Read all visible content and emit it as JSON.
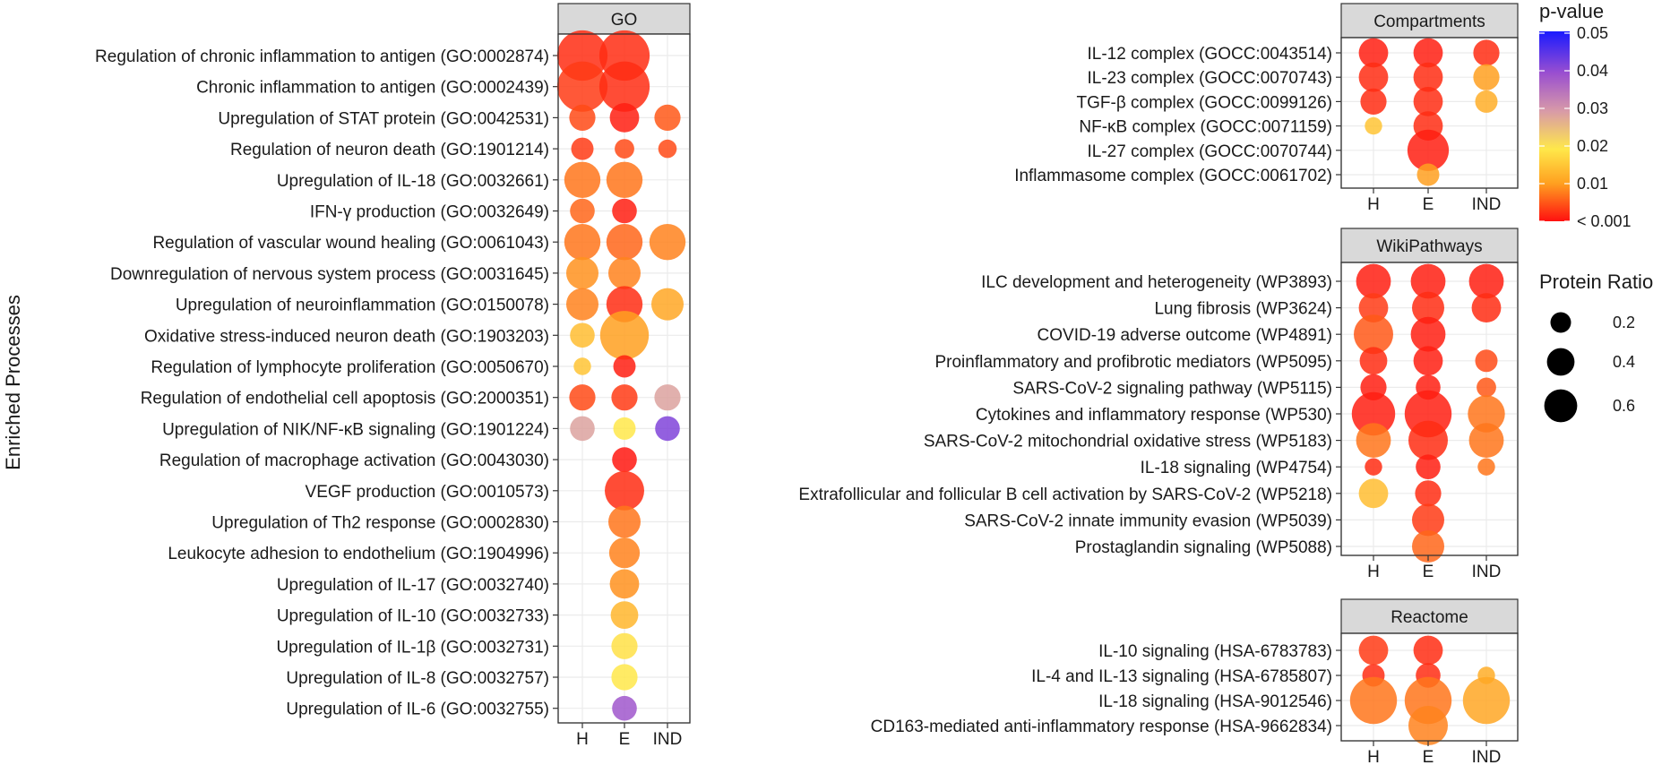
{
  "chart_data": {
    "type": "dot",
    "y_axis_title": "Enriched Processes",
    "x_categories": [
      "H",
      "E",
      "IND"
    ],
    "color_legend": {
      "title": "p-value",
      "labels": [
        "0.05",
        "0.04",
        "0.03",
        "0.02",
        "0.01",
        "< 0.001"
      ],
      "scale": [
        0.05,
        0.001
      ]
    },
    "size_legend": {
      "title": "Protein Ratio",
      "labels": [
        "0.2",
        "0.4",
        "0.6"
      ],
      "values": [
        0.2,
        0.4,
        0.6
      ]
    },
    "panels": [
      {
        "name": "GO",
        "terms": [
          {
            "label": "Regulation of chronic inflammation to antigen (GO:0002874)",
            "points": [
              {
                "x": "H",
                "ratio": 0.7,
                "p": 0.002
              },
              {
                "x": "E",
                "ratio": 0.7,
                "p": 0.002
              }
            ]
          },
          {
            "label": "Chronic inflammation to antigen (GO:0002439)",
            "points": [
              {
                "x": "H",
                "ratio": 0.7,
                "p": 0.003
              },
              {
                "x": "E",
                "ratio": 0.7,
                "p": 0.002
              }
            ]
          },
          {
            "label": "Upregulation of STAT protein (GO:0042531)",
            "points": [
              {
                "x": "H",
                "ratio": 0.15,
                "p": 0.004
              },
              {
                "x": "E",
                "ratio": 0.2,
                "p": 0.001
              },
              {
                "x": "IND",
                "ratio": 0.15,
                "p": 0.005
              }
            ]
          },
          {
            "label": "Regulation of neuron death (GO:1901214)",
            "points": [
              {
                "x": "H",
                "ratio": 0.1,
                "p": 0.003
              },
              {
                "x": "E",
                "ratio": 0.07,
                "p": 0.004
              },
              {
                "x": "IND",
                "ratio": 0.06,
                "p": 0.004
              }
            ]
          },
          {
            "label": "Upregulation of IL-18 (GO:0032661)",
            "points": [
              {
                "x": "H",
                "ratio": 0.33,
                "p": 0.007
              },
              {
                "x": "E",
                "ratio": 0.33,
                "p": 0.007
              }
            ]
          },
          {
            "label": "IFN-γ production (GO:0032649)",
            "points": [
              {
                "x": "H",
                "ratio": 0.13,
                "p": 0.006
              },
              {
                "x": "E",
                "ratio": 0.13,
                "p": 0.001
              }
            ]
          },
          {
            "label": "Regulation of vascular wound healing (GO:0061043)",
            "points": [
              {
                "x": "H",
                "ratio": 0.33,
                "p": 0.007
              },
              {
                "x": "E",
                "ratio": 0.33,
                "p": 0.006
              },
              {
                "x": "IND",
                "ratio": 0.33,
                "p": 0.008
              }
            ]
          },
          {
            "label": "Downregulation of nervous system process (GO:0031645)",
            "points": [
              {
                "x": "H",
                "ratio": 0.25,
                "p": 0.009
              },
              {
                "x": "E",
                "ratio": 0.25,
                "p": 0.008
              }
            ]
          },
          {
            "label": "Upregulation of neuroinflammation (GO:0150078)",
            "points": [
              {
                "x": "H",
                "ratio": 0.25,
                "p": 0.008
              },
              {
                "x": "E",
                "ratio": 0.33,
                "p": 0.002
              },
              {
                "x": "IND",
                "ratio": 0.25,
                "p": 0.011
              }
            ]
          },
          {
            "label": "Oxidative stress-induced neuron death (GO:1903203)",
            "points": [
              {
                "x": "H",
                "ratio": 0.13,
                "p": 0.014
              },
              {
                "x": "E",
                "ratio": 0.65,
                "p": 0.01
              }
            ]
          },
          {
            "label": "Regulation of lymphocyte proliferation (GO:0050670)",
            "points": [
              {
                "x": "H",
                "ratio": 0.05,
                "p": 0.015
              },
              {
                "x": "E",
                "ratio": 0.1,
                "p": 0.001
              }
            ]
          },
          {
            "label": "Regulation of endothelial cell apoptosis (GO:2000351)",
            "points": [
              {
                "x": "H",
                "ratio": 0.15,
                "p": 0.004
              },
              {
                "x": "E",
                "ratio": 0.15,
                "p": 0.003
              },
              {
                "x": "IND",
                "ratio": 0.15,
                "p": 0.029
              }
            ]
          },
          {
            "label": "Upregulation of NIK/NF-κB signaling (GO:1901224)",
            "points": [
              {
                "x": "H",
                "ratio": 0.13,
                "p": 0.029
              },
              {
                "x": "E",
                "ratio": 0.1,
                "p": 0.02
              },
              {
                "x": "IND",
                "ratio": 0.13,
                "p": 0.042
              }
            ]
          },
          {
            "label": "Regulation of macrophage activation (GO:0043030)",
            "points": [
              {
                "x": "E",
                "ratio": 0.13,
                "p": 0.0005
              }
            ]
          },
          {
            "label": "VEGF production (GO:0010573)",
            "points": [
              {
                "x": "E",
                "ratio": 0.4,
                "p": 0.002
              }
            ]
          },
          {
            "label": "Upregulation of Th2 response (GO:0002830)",
            "points": [
              {
                "x": "E",
                "ratio": 0.25,
                "p": 0.007
              }
            ]
          },
          {
            "label": "Leukocyte adhesion to endothelium (GO:1904996)",
            "points": [
              {
                "x": "E",
                "ratio": 0.22,
                "p": 0.008
              }
            ]
          },
          {
            "label": "Upregulation of IL-17 (GO:0032740)",
            "points": [
              {
                "x": "E",
                "ratio": 0.2,
                "p": 0.009
              }
            ]
          },
          {
            "label": "Upregulation of IL-10 (GO:0032733)",
            "points": [
              {
                "x": "E",
                "ratio": 0.17,
                "p": 0.013
              }
            ]
          },
          {
            "label": "Upregulation of IL-1β (GO:0032731)",
            "points": [
              {
                "x": "E",
                "ratio": 0.15,
                "p": 0.019
              }
            ]
          },
          {
            "label": "Upregulation of IL-8 (GO:0032757)",
            "points": [
              {
                "x": "E",
                "ratio": 0.15,
                "p": 0.02
              }
            ]
          },
          {
            "label": "Upregulation of IL-6 (GO:0032755)",
            "points": [
              {
                "x": "E",
                "ratio": 0.13,
                "p": 0.039
              }
            ]
          }
        ]
      },
      {
        "name": "Compartments",
        "terms": [
          {
            "label": "IL-12 complex (GOCC:0043514)",
            "points": [
              {
                "x": "H",
                "ratio": 0.2,
                "p": 0.001
              },
              {
                "x": "E",
                "ratio": 0.2,
                "p": 0.001
              },
              {
                "x": "IND",
                "ratio": 0.15,
                "p": 0.002
              }
            ]
          },
          {
            "label": "IL-23 complex (GOCC:0070743)",
            "points": [
              {
                "x": "H",
                "ratio": 0.2,
                "p": 0.002
              },
              {
                "x": "E",
                "ratio": 0.2,
                "p": 0.002
              },
              {
                "x": "IND",
                "ratio": 0.15,
                "p": 0.01
              }
            ]
          },
          {
            "label": "TGF-β complex (GOCC:0099126)",
            "points": [
              {
                "x": "H",
                "ratio": 0.15,
                "p": 0.002
              },
              {
                "x": "E",
                "ratio": 0.2,
                "p": 0.002
              },
              {
                "x": "IND",
                "ratio": 0.1,
                "p": 0.012
              }
            ]
          },
          {
            "label": "NF-κB complex (GOCC:0071159)",
            "points": [
              {
                "x": "H",
                "ratio": 0.05,
                "p": 0.015
              },
              {
                "x": "E",
                "ratio": 0.2,
                "p": 0.002
              }
            ]
          },
          {
            "label": "IL-27 complex (GOCC:0070744)",
            "points": [
              {
                "x": "E",
                "ratio": 0.45,
                "p": 0.001
              }
            ]
          },
          {
            "label": "Inflammasome complex (GOCC:0061702)",
            "points": [
              {
                "x": "E",
                "ratio": 0.1,
                "p": 0.01
              }
            ]
          }
        ]
      },
      {
        "name": "WikiPathways",
        "terms": [
          {
            "label": "ILC development and heterogeneity (WP3893)",
            "points": [
              {
                "x": "H",
                "ratio": 0.3,
                "p": 0.001
              },
              {
                "x": "E",
                "ratio": 0.3,
                "p": 0.001
              },
              {
                "x": "IND",
                "ratio": 0.3,
                "p": 0.001
              }
            ]
          },
          {
            "label": "Lung fibrosis (WP3624)",
            "points": [
              {
                "x": "H",
                "ratio": 0.2,
                "p": 0.003
              },
              {
                "x": "E",
                "ratio": 0.25,
                "p": 0.002
              },
              {
                "x": "IND",
                "ratio": 0.2,
                "p": 0.002
              }
            ]
          },
          {
            "label": "COVID-19 adverse outcome (WP4891)",
            "points": [
              {
                "x": "H",
                "ratio": 0.4,
                "p": 0.005
              },
              {
                "x": "E",
                "ratio": 0.3,
                "p": 0.001
              }
            ]
          },
          {
            "label": "Proinflammatory and profibrotic mediators (WP5095)",
            "points": [
              {
                "x": "H",
                "ratio": 0.17,
                "p": 0.002
              },
              {
                "x": "E",
                "ratio": 0.2,
                "p": 0.001
              },
              {
                "x": "IND",
                "ratio": 0.1,
                "p": 0.004
              }
            ]
          },
          {
            "label": "SARS-CoV-2 signaling pathway (WP5115)",
            "points": [
              {
                "x": "H",
                "ratio": 0.15,
                "p": 0.001
              },
              {
                "x": "E",
                "ratio": 0.13,
                "p": 0.001
              },
              {
                "x": "IND",
                "ratio": 0.07,
                "p": 0.005
              }
            ]
          },
          {
            "label": "Cytokines and inflammatory response (WP530)",
            "points": [
              {
                "x": "H",
                "ratio": 0.5,
                "p": 0.001
              },
              {
                "x": "E",
                "ratio": 0.6,
                "p": 0.001
              },
              {
                "x": "IND",
                "ratio": 0.35,
                "p": 0.007
              }
            ]
          },
          {
            "label": "SARS-CoV-2 mitochondrial oxidative stress (WP5183)",
            "points": [
              {
                "x": "H",
                "ratio": 0.3,
                "p": 0.007
              },
              {
                "x": "E",
                "ratio": 0.4,
                "p": 0.002
              },
              {
                "x": "IND",
                "ratio": 0.3,
                "p": 0.007
              }
            ]
          },
          {
            "label": "IL-18 signaling (WP4754)",
            "points": [
              {
                "x": "H",
                "ratio": 0.05,
                "p": 0.002
              },
              {
                "x": "E",
                "ratio": 0.13,
                "p": 0.001
              },
              {
                "x": "IND",
                "ratio": 0.05,
                "p": 0.007
              }
            ]
          },
          {
            "label": "Extrafollicular and follicular B cell activation by SARS-CoV-2 (WP5218)",
            "points": [
              {
                "x": "H",
                "ratio": 0.2,
                "p": 0.014
              },
              {
                "x": "E",
                "ratio": 0.15,
                "p": 0.002
              }
            ]
          },
          {
            "label": "SARS-CoV-2 innate immunity evasion (WP5039)",
            "points": [
              {
                "x": "E",
                "ratio": 0.25,
                "p": 0.003
              }
            ]
          },
          {
            "label": "Prostaglandin signaling (WP5088)",
            "points": [
              {
                "x": "E",
                "ratio": 0.25,
                "p": 0.006
              }
            ]
          }
        ]
      },
      {
        "name": "Reactome",
        "terms": [
          {
            "label": "IL-10 signaling (HSA-6783783)",
            "points": [
              {
                "x": "H",
                "ratio": 0.2,
                "p": 0.003
              },
              {
                "x": "E",
                "ratio": 0.2,
                "p": 0.002
              }
            ]
          },
          {
            "label": "IL-4 and IL-13 signaling (HSA-6785807)",
            "points": [
              {
                "x": "H",
                "ratio": 0.1,
                "p": 0.002
              },
              {
                "x": "E",
                "ratio": 0.13,
                "p": 0.002
              },
              {
                "x": "IND",
                "ratio": 0.05,
                "p": 0.012
              }
            ]
          },
          {
            "label": "IL-18 signaling (HSA-9012546)",
            "points": [
              {
                "x": "H",
                "ratio": 0.6,
                "p": 0.007
              },
              {
                "x": "E",
                "ratio": 0.6,
                "p": 0.007
              },
              {
                "x": "IND",
                "ratio": 0.6,
                "p": 0.011
              }
            ]
          },
          {
            "label": "CD163-mediated anti-inflammatory response (HSA-9662834)",
            "points": [
              {
                "x": "E",
                "ratio": 0.4,
                "p": 0.008
              }
            ]
          }
        ]
      }
    ]
  }
}
